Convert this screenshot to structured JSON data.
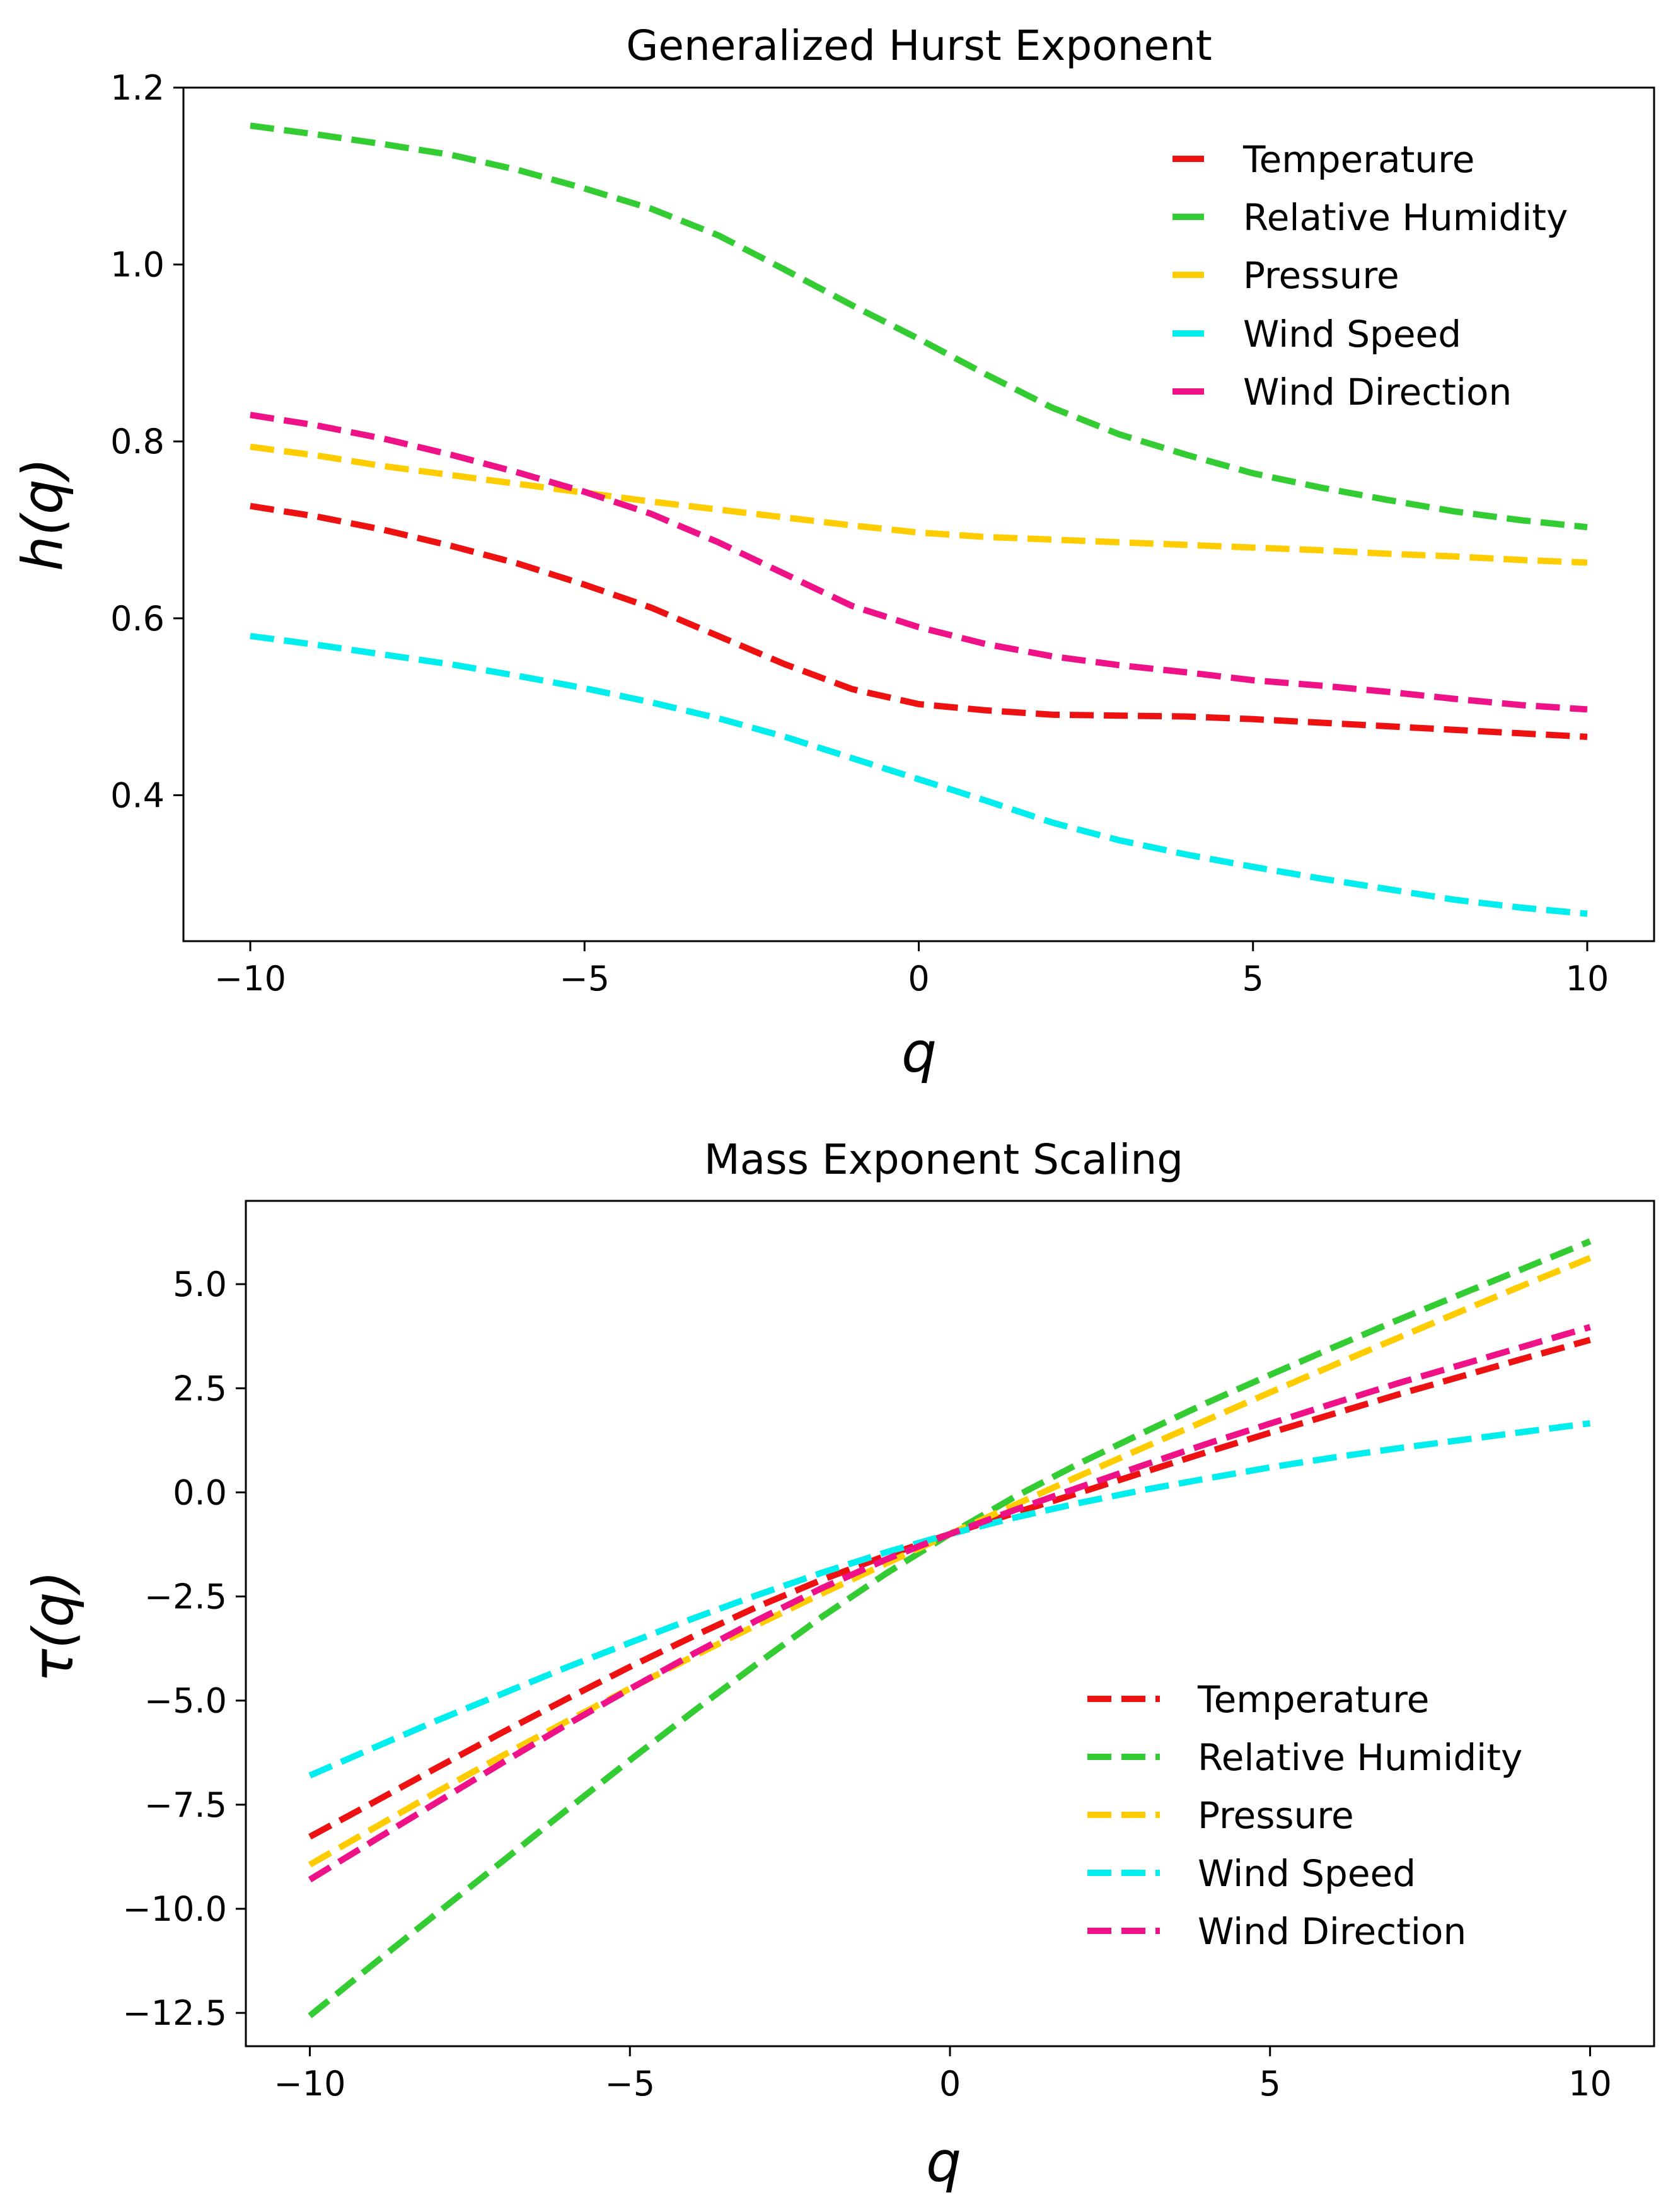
{
  "chart_data": [
    {
      "type": "line",
      "title": "Generalized Hurst Exponent",
      "xlabel": "q",
      "ylabel": "h(q)",
      "xlim": [
        -11,
        11
      ],
      "ylim": [
        0.235,
        1.2
      ],
      "xticks": [
        -10,
        -5,
        0,
        5,
        10
      ],
      "xtick_labels": [
        "−10",
        "−5",
        "0",
        "5",
        "10"
      ],
      "yticks": [
        0.4,
        0.6,
        0.8,
        1.0,
        1.2
      ],
      "ytick_labels": [
        "0.4",
        "0.6",
        "0.8",
        "1.0",
        "1.2"
      ],
      "legend_position": "top-right",
      "x": [
        -10,
        -9,
        -8,
        -7,
        -6,
        -5,
        -4,
        -3,
        -2,
        -1,
        0,
        1,
        2,
        3,
        4,
        5,
        6,
        7,
        8,
        9,
        10
      ],
      "series": [
        {
          "name": "Temperature",
          "color": "#ee1111",
          "values": [
            0.727,
            0.715,
            0.7,
            0.682,
            0.662,
            0.638,
            0.612,
            0.58,
            0.548,
            0.52,
            0.503,
            0.496,
            0.491,
            0.49,
            0.489,
            0.486,
            0.482,
            0.478,
            0.474,
            0.47,
            0.466
          ]
        },
        {
          "name": "Relative Humidity",
          "color": "#33cc33",
          "values": [
            1.157,
            1.147,
            1.136,
            1.124,
            1.107,
            1.086,
            1.063,
            1.033,
            0.994,
            0.954,
            0.916,
            0.876,
            0.838,
            0.808,
            0.785,
            0.764,
            0.748,
            0.734,
            0.721,
            0.711,
            0.703
          ]
        },
        {
          "name": "Pressure",
          "color": "#ffcc00",
          "values": [
            0.794,
            0.784,
            0.772,
            0.762,
            0.752,
            0.742,
            0.732,
            0.723,
            0.714,
            0.705,
            0.697,
            0.692,
            0.689,
            0.686,
            0.683,
            0.68,
            0.677,
            0.673,
            0.67,
            0.666,
            0.663
          ]
        },
        {
          "name": "Wind Speed",
          "color": "#00eeee",
          "values": [
            0.58,
            0.57,
            0.559,
            0.548,
            0.535,
            0.521,
            0.505,
            0.487,
            0.466,
            0.442,
            0.418,
            0.394,
            0.369,
            0.349,
            0.333,
            0.319,
            0.306,
            0.294,
            0.282,
            0.273,
            0.266
          ]
        },
        {
          "name": "Wind Direction",
          "color": "#ee1188",
          "values": [
            0.83,
            0.818,
            0.803,
            0.785,
            0.765,
            0.743,
            0.718,
            0.686,
            0.65,
            0.614,
            0.59,
            0.571,
            0.557,
            0.547,
            0.539,
            0.53,
            0.524,
            0.517,
            0.509,
            0.502,
            0.497
          ]
        }
      ]
    },
    {
      "type": "line",
      "title": "Mass Exponent Scaling",
      "xlabel": "q",
      "ylabel": "τ(q)",
      "xlim": [
        -11,
        11
      ],
      "ylim": [
        -13.3,
        7.0
      ],
      "xticks": [
        -10,
        -5,
        0,
        5,
        10
      ],
      "xtick_labels": [
        "−10",
        "−5",
        "0",
        "5",
        "10"
      ],
      "yticks": [
        -12.5,
        -10.0,
        -7.5,
        -5.0,
        -2.5,
        0.0,
        2.5,
        5.0
      ],
      "ytick_labels": [
        "−12.5",
        "−10.0",
        "−7.5",
        "−5.0",
        "−2.5",
        "0.0",
        "2.5",
        "5.0"
      ],
      "legend_position": "bottom-right",
      "x": [
        -10,
        -9,
        -8,
        -7,
        -6,
        -5,
        -4,
        -3,
        -2,
        -1,
        0,
        1,
        2,
        3,
        4,
        5,
        6,
        7,
        8,
        9,
        10
      ],
      "series": [
        {
          "name": "Temperature",
          "color": "#ee1111",
          "values": [
            -8.27,
            -7.44,
            -6.6,
            -5.77,
            -4.97,
            -4.19,
            -3.45,
            -2.74,
            -2.1,
            -1.52,
            -1.0,
            -0.5,
            -0.02,
            0.47,
            0.96,
            1.43,
            1.89,
            2.35,
            2.79,
            3.23,
            3.66
          ]
        },
        {
          "name": "Relative Humidity",
          "color": "#33cc33",
          "values": [
            -12.57,
            -11.32,
            -10.09,
            -8.87,
            -7.64,
            -6.43,
            -5.25,
            -4.1,
            -2.99,
            -1.95,
            -1.0,
            -0.12,
            0.68,
            1.42,
            2.14,
            2.82,
            3.49,
            4.14,
            4.77,
            5.4,
            6.03
          ]
        },
        {
          "name": "Pressure",
          "color": "#ffcc00",
          "values": [
            -8.94,
            -8.06,
            -7.18,
            -6.33,
            -5.51,
            -4.71,
            -3.93,
            -3.17,
            -2.43,
            -1.71,
            -1.0,
            -0.31,
            0.38,
            1.06,
            1.73,
            2.4,
            3.06,
            3.71,
            4.36,
            5.0,
            5.63
          ]
        },
        {
          "name": "Wind Speed",
          "color": "#00eeee",
          "values": [
            -6.8,
            -6.13,
            -5.47,
            -4.84,
            -4.21,
            -3.61,
            -3.02,
            -2.46,
            -1.93,
            -1.44,
            -1.0,
            -0.61,
            -0.26,
            0.05,
            0.33,
            0.6,
            0.84,
            1.06,
            1.26,
            1.46,
            1.66
          ]
        },
        {
          "name": "Wind Direction",
          "color": "#ee1188",
          "values": [
            -9.3,
            -8.36,
            -7.43,
            -6.5,
            -5.59,
            -4.72,
            -3.87,
            -3.06,
            -2.3,
            -1.61,
            -1.0,
            -0.43,
            0.11,
            0.64,
            1.16,
            1.65,
            2.14,
            2.62,
            3.07,
            3.52,
            3.97
          ]
        }
      ]
    }
  ]
}
